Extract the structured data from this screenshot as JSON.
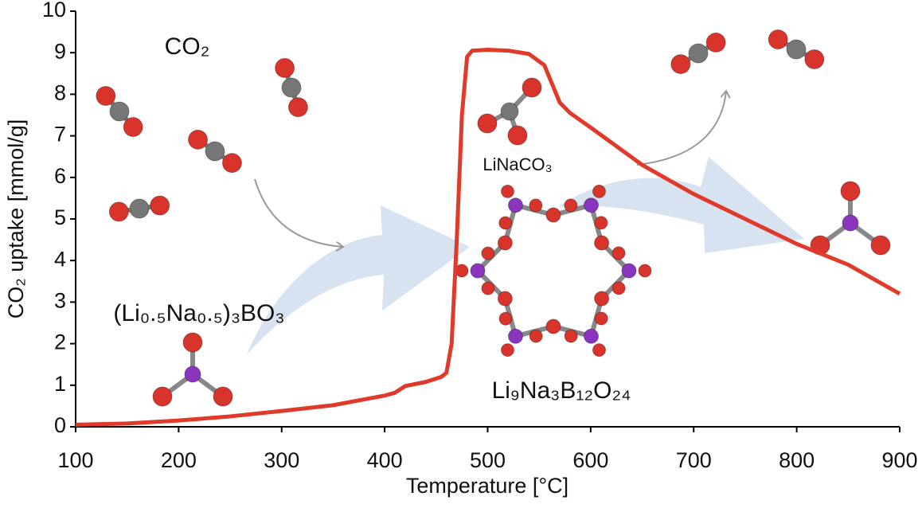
{
  "chart_data": {
    "type": "line",
    "x_label": "Temperature [°C]",
    "y_label": "CO₂ uptake [mmol/g]",
    "series": [
      {
        "color": "#e03a2a",
        "x": [
          100,
          150,
          200,
          250,
          300,
          350,
          400,
          410,
          420,
          440,
          455,
          460,
          465,
          470,
          475,
          480,
          485,
          500,
          520,
          540,
          555,
          570,
          580,
          600,
          650,
          700,
          750,
          800,
          850,
          900
        ],
        "values": [
          0.05,
          0.08,
          0.15,
          0.25,
          0.38,
          0.52,
          0.75,
          0.82,
          0.98,
          1.08,
          1.2,
          1.3,
          2.0,
          4.5,
          7.5,
          8.9,
          9.05,
          9.07,
          9.05,
          8.97,
          8.7,
          7.8,
          7.55,
          7.2,
          6.3,
          5.6,
          5.0,
          4.4,
          3.9,
          3.2
        ]
      }
    ],
    "xlim": [
      100,
      900
    ],
    "xticks": [
      100,
      200,
      300,
      400,
      500,
      600,
      700,
      800,
      900
    ],
    "ylim": [
      0,
      10
    ],
    "yticks": [
      0,
      1,
      2,
      3,
      4,
      5,
      6,
      7,
      8,
      9,
      10
    ],
    "grid": false,
    "annotations": [
      "CO₂",
      "(Li₀.₅Na₀.₅)₃BO₃",
      "LiNaCO₃",
      "Li₉Na₃B₁₂O₂₄"
    ]
  }
}
